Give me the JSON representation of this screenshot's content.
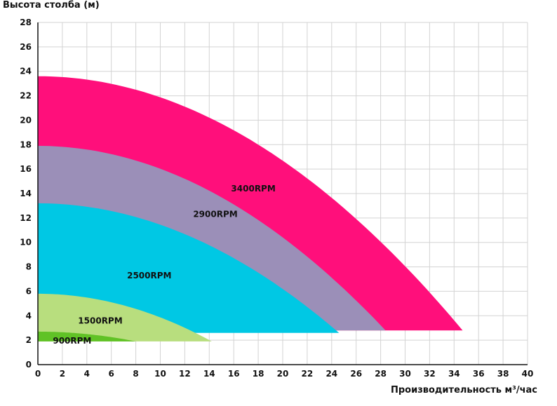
{
  "chart_data": {
    "type": "area",
    "ylabel": "Высота столба (м)",
    "xlabel": "Производительность м³/час",
    "xlim": [
      0,
      40
    ],
    "ylim": [
      0,
      28
    ],
    "xticks": [
      0,
      2,
      4,
      6,
      8,
      10,
      12,
      14,
      16,
      18,
      20,
      22,
      24,
      26,
      28,
      30,
      32,
      34,
      36,
      38,
      40
    ],
    "yticks": [
      0,
      2,
      4,
      6,
      8,
      10,
      12,
      14,
      16,
      18,
      20,
      22,
      24,
      26,
      28
    ],
    "grid": true,
    "series": [
      {
        "name": "3400RPM",
        "color": "#ff0f7b",
        "max_head": 23.6,
        "max_flow": 34.7,
        "min_head": 2.8
      },
      {
        "name": "2900RPM",
        "color": "#9b8fb8",
        "max_head": 17.9,
        "max_flow": 28.4,
        "min_head": 2.8
      },
      {
        "name": "2500RPM",
        "color": "#00c8e4",
        "max_head": 13.2,
        "max_flow": 24.6,
        "min_head": 2.6
      },
      {
        "name": "1500RPM",
        "color": "#b8de7e",
        "max_head": 5.8,
        "max_flow": 14.2,
        "min_head": 1.9
      },
      {
        "name": "900RPM",
        "color": "#60c226",
        "max_head": 2.7,
        "max_flow": 8.0,
        "min_head": 1.9
      }
    ]
  }
}
